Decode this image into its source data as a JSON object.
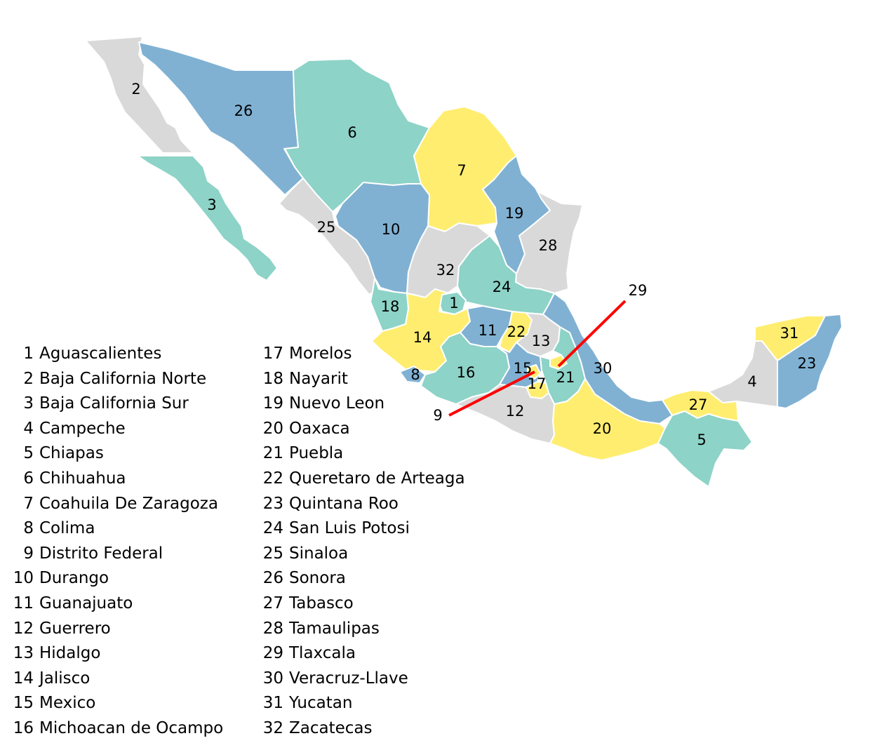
{
  "colors": {
    "gray": "#d9d9d9",
    "teal": "#8dd3c7",
    "blue": "#80b1d3",
    "yellow": "#ffed6f",
    "leader": "#ff0000",
    "border": "#ffffff"
  },
  "states": [
    {
      "id": 1,
      "name": "Aguascalientes",
      "color": "teal"
    },
    {
      "id": 2,
      "name": "Baja California Norte",
      "color": "gray"
    },
    {
      "id": 3,
      "name": "Baja California Sur",
      "color": "teal"
    },
    {
      "id": 4,
      "name": "Campeche",
      "color": "gray"
    },
    {
      "id": 5,
      "name": "Chiapas",
      "color": "teal"
    },
    {
      "id": 6,
      "name": "Chihuahua",
      "color": "teal"
    },
    {
      "id": 7,
      "name": "Coahuila De Zaragoza",
      "color": "yellow"
    },
    {
      "id": 8,
      "name": "Colima",
      "color": "blue"
    },
    {
      "id": 9,
      "name": "Distrito Federal",
      "color": "yellow"
    },
    {
      "id": 10,
      "name": "Durango",
      "color": "blue"
    },
    {
      "id": 11,
      "name": "Guanajuato",
      "color": "blue"
    },
    {
      "id": 12,
      "name": "Guerrero",
      "color": "gray"
    },
    {
      "id": 13,
      "name": "Hidalgo",
      "color": "gray"
    },
    {
      "id": 14,
      "name": "Jalisco",
      "color": "yellow"
    },
    {
      "id": 15,
      "name": "Mexico",
      "color": "blue"
    },
    {
      "id": 16,
      "name": "Michoacan de Ocampo",
      "color": "teal"
    },
    {
      "id": 17,
      "name": "Morelos",
      "color": "yellow"
    },
    {
      "id": 18,
      "name": "Nayarit",
      "color": "teal"
    },
    {
      "id": 19,
      "name": "Nuevo Leon",
      "color": "blue"
    },
    {
      "id": 20,
      "name": "Oaxaca",
      "color": "yellow"
    },
    {
      "id": 21,
      "name": "Puebla",
      "color": "teal"
    },
    {
      "id": 22,
      "name": "Queretaro de Arteaga",
      "color": "yellow"
    },
    {
      "id": 23,
      "name": "Quintana Roo",
      "color": "blue"
    },
    {
      "id": 24,
      "name": "San Luis Potosi",
      "color": "teal"
    },
    {
      "id": 25,
      "name": "Sinaloa",
      "color": "gray"
    },
    {
      "id": 26,
      "name": "Sonora",
      "color": "blue"
    },
    {
      "id": 27,
      "name": "Tabasco",
      "color": "yellow"
    },
    {
      "id": 28,
      "name": "Tamaulipas",
      "color": "gray"
    },
    {
      "id": 29,
      "name": "Tlaxcala",
      "color": "yellow"
    },
    {
      "id": 30,
      "name": "Veracruz-Llave",
      "color": "blue"
    },
    {
      "id": 31,
      "name": "Yucatan",
      "color": "yellow"
    },
    {
      "id": 32,
      "name": "Zacatecas",
      "color": "gray"
    }
  ]
}
